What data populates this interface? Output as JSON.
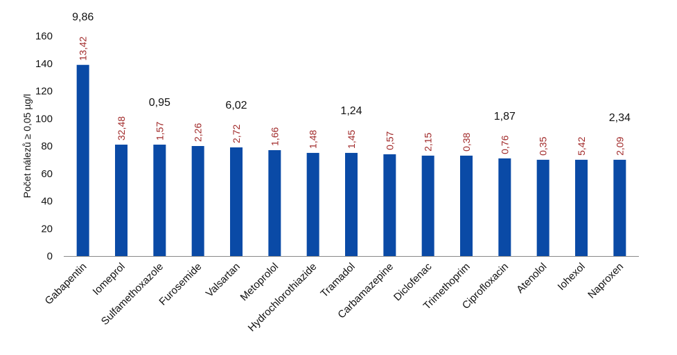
{
  "chart_data": {
    "type": "bar",
    "title": "",
    "xlabel": "",
    "ylabel": "Počet nálezů ≥ 0,05 µg/l",
    "ylim": [
      0,
      160
    ],
    "yticks": [
      0,
      20,
      40,
      60,
      80,
      100,
      120,
      140,
      160
    ],
    "grid": false,
    "bar_color": "#0a4aa6",
    "categories": [
      "Gabapentin",
      "Iomeprol",
      "Sulfamethoxazole",
      "Furosemide",
      "Valsartan",
      "Metoprolol",
      "Hydrochlorothiazide",
      "Tramadol",
      "Carbamazepine",
      "Diclofenac",
      "Trimethoprim",
      "Ciprofloxacin",
      "Atenolol",
      "Iohexol",
      "Naproxen"
    ],
    "values": [
      139,
      81,
      81,
      80,
      79,
      77,
      75,
      75,
      74,
      73,
      73,
      71,
      70,
      70,
      70
    ],
    "annotations_red": [
      "13,42",
      "32,48",
      "1,57",
      "2,26",
      "2,72",
      "1,66",
      "1,48",
      "1,45",
      "0,57",
      "2,15",
      "0,38",
      "0,76",
      "0,35",
      "5,42",
      "2,09"
    ],
    "annotations_black": [
      "9,86",
      "",
      "0,95",
      "",
      "6,02",
      "",
      "",
      "1,24",
      "",
      "",
      "",
      "1,87",
      "",
      "",
      "2,34"
    ],
    "annotation_colors": {
      "red": "#a02828",
      "black": "#111111"
    }
  }
}
